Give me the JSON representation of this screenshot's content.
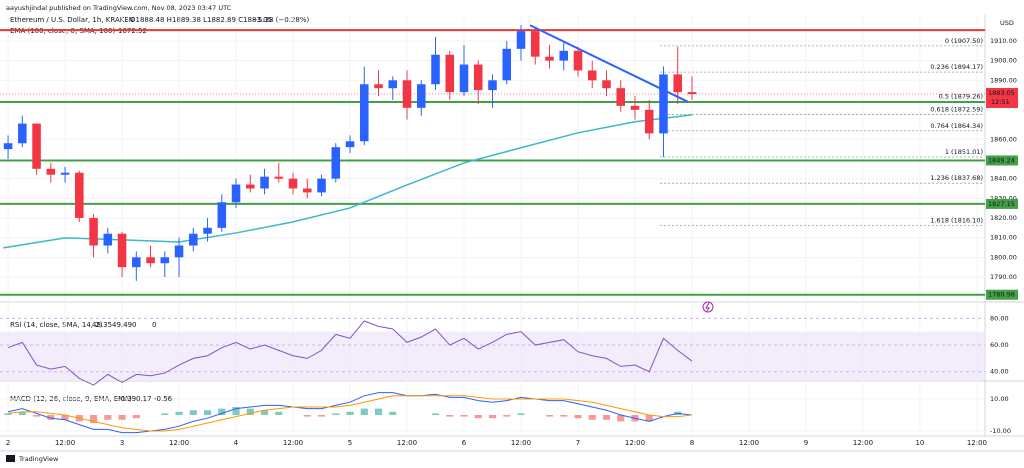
{
  "chart_data": {
    "type": "candlestick",
    "title": "aayushjindal published on TradingView.com, Nov 08, 2023 03:47 UTC",
    "symbol_legend": "Ethereum / U.S. Dollar, 1h, KRAKEN",
    "ohlc_legend": "O1888.48 H1889.38 L1882.89 C1883.05",
    "change_legend": "−5.38 (−0.28%)",
    "ema_legend": "EMA (100, close, 0, SMA, 100)",
    "ema_last": 1872.52,
    "currency": "USD",
    "footer": "TradingView",
    "up_color": "#2962ff",
    "down_color": "#f23645",
    "x": [
      0,
      3,
      6,
      9,
      12,
      15,
      18,
      21,
      24,
      27,
      30,
      33,
      36,
      39,
      42,
      45,
      48,
      51,
      54,
      57,
      60,
      63,
      66,
      69,
      72,
      75,
      78,
      81,
      84,
      87,
      90,
      93,
      96,
      99,
      102,
      105,
      108,
      111,
      114,
      117,
      120,
      123,
      126,
      129,
      132,
      135,
      138,
      141,
      144
    ],
    "open": [
      1855,
      1858,
      1868,
      1845,
      1842,
      1843,
      1820,
      1806,
      1812,
      1795,
      1800,
      1797,
      1800,
      1806,
      1812,
      1815,
      1828,
      1837,
      1835,
      1841,
      1840,
      1835,
      1833,
      1840,
      1856,
      1859,
      1888,
      1886,
      1890,
      1876,
      1888,
      1903,
      1884,
      1898,
      1885,
      1890,
      1906,
      1915,
      1902,
      1900,
      1905,
      1895,
      1890,
      1886,
      1877,
      1875,
      1863,
      1893,
      1884
    ],
    "high": [
      1862,
      1872,
      1868,
      1848,
      1846,
      1844,
      1822,
      1815,
      1813,
      1803,
      1806,
      1803,
      1810,
      1815,
      1820,
      1832,
      1840,
      1842,
      1845,
      1848,
      1843,
      1840,
      1842,
      1858,
      1862,
      1897,
      1895,
      1892,
      1895,
      1890,
      1912,
      1905,
      1908,
      1900,
      1893,
      1910,
      1918,
      1917,
      1908,
      1910,
      1907,
      1900,
      1895,
      1890,
      1882,
      1880,
      1897,
      1907,
      1892
    ],
    "low": [
      1850,
      1856,
      1842,
      1838,
      1838,
      1818,
      1800,
      1802,
      1790,
      1788,
      1795,
      1790,
      1790,
      1803,
      1808,
      1813,
      1825,
      1833,
      1832,
      1838,
      1832,
      1830,
      1831,
      1838,
      1853,
      1857,
      1882,
      1880,
      1870,
      1872,
      1885,
      1880,
      1882,
      1878,
      1876,
      1888,
      1900,
      1898,
      1896,
      1895,
      1892,
      1886,
      1882,
      1874,
      1870,
      1860,
      1851,
      1878,
      1880
    ],
    "close": [
      1858,
      1868,
      1845,
      1842,
      1843,
      1820,
      1806,
      1812,
      1795,
      1800,
      1797,
      1800,
      1806,
      1812,
      1815,
      1828,
      1837,
      1835,
      1841,
      1840,
      1835,
      1833,
      1840,
      1856,
      1859,
      1888,
      1886,
      1890,
      1876,
      1888,
      1903,
      1884,
      1898,
      1885,
      1890,
      1906,
      1915,
      1902,
      1900,
      1905,
      1895,
      1890,
      1886,
      1877,
      1875,
      1863,
      1893,
      1884,
      1883
    ],
    "xlim": [
      -1.7,
      205.7
    ],
    "xticks": [
      {
        "value": 0,
        "label": "2"
      },
      {
        "value": 12,
        "label": "12:00"
      },
      {
        "value": 24,
        "label": "3"
      },
      {
        "value": 36,
        "label": "12:00"
      },
      {
        "value": 48,
        "label": "4"
      },
      {
        "value": 60,
        "label": "12:00"
      },
      {
        "value": 72,
        "label": "5"
      },
      {
        "value": 84,
        "label": "12:00"
      },
      {
        "value": 96,
        "label": "6"
      },
      {
        "value": 108,
        "label": "12:00"
      },
      {
        "value": 120,
        "label": "7"
      },
      {
        "value": 132,
        "label": "12:00"
      },
      {
        "value": 144,
        "label": "8"
      },
      {
        "value": 156,
        "label": "12:00"
      },
      {
        "value": 168,
        "label": "9"
      },
      {
        "value": 180,
        "label": "12:00"
      },
      {
        "value": 192,
        "label": "10"
      },
      {
        "value": 204,
        "label": "12:00"
      }
    ],
    "ylim": [
      1778.3,
      1923.2
    ],
    "yticks": [
      {
        "value": 1910,
        "label": "1910.00"
      },
      {
        "value": 1900,
        "label": "1900.00"
      },
      {
        "value": 1890,
        "label": "1890.00"
      },
      {
        "value": 1860,
        "label": "1860.00"
      },
      {
        "value": 1840,
        "label": "1840.00"
      },
      {
        "value": 1830,
        "label": "1830.00"
      },
      {
        "value": 1820,
        "label": "1820.00"
      },
      {
        "value": 1810,
        "label": "1810.00"
      },
      {
        "value": 1800,
        "label": "1800.00"
      },
      {
        "value": 1790,
        "label": "1790.00"
      }
    ],
    "ema": {
      "color": "#3bb8c9",
      "x": [
        -1,
        12,
        24,
        36,
        48,
        60,
        72,
        84,
        96,
        108,
        120,
        132,
        144
      ],
      "values": [
        1804.8,
        1809.9,
        1808.9,
        1807.8,
        1812.4,
        1818,
        1825.1,
        1836.8,
        1848,
        1855.7,
        1863.3,
        1868.9,
        1872.4
      ]
    },
    "levels": {
      "color": "#43a047",
      "values": [
        1878.98,
        1849.24,
        1827.15,
        1780.98
      ]
    },
    "resistance": {
      "color": "#e53935",
      "value": 1915.5
    },
    "trendline": {
      "color": "#2962ff",
      "x": [
        109.9,
        143.2
      ],
      "values": [
        1918,
        1879
      ]
    },
    "last_price": 1883.05,
    "last_time": "12:51",
    "fib": {
      "color": "#9598a1",
      "x_start": 137.3,
      "levels": [
        {
          "value": 1907.5,
          "label": "0 (1907.50)"
        },
        {
          "value": 1894.17,
          "label": "0.236 (1894.17)"
        },
        {
          "value": 1879.26,
          "label": "0.5 (1879.26)"
        },
        {
          "value": 1872.59,
          "label": "0.618 (1872.59)"
        },
        {
          "value": 1864.34,
          "label": "0.764 (1864.34)"
        },
        {
          "value": 1851.01,
          "label": "1 (1851.01)"
        },
        {
          "value": 1837.68,
          "label": "1.236 (1837.68)"
        },
        {
          "value": 1816.1,
          "label": "1.618 (1816.10)"
        }
      ]
    },
    "rsi": {
      "legend": "RSI (14, close, SMA, 14, 2)",
      "legend_values": [
        48.35,
        49.49,
        0,
        0
      ],
      "color": "#7e57c2",
      "band_color": "#ede4fa",
      "values": [
        58,
        62,
        45,
        42,
        44,
        35,
        30,
        38,
        32,
        38,
        37,
        39,
        45,
        50,
        52,
        58,
        62,
        57,
        60,
        56,
        52,
        50,
        56,
        68,
        65,
        78,
        74,
        72,
        62,
        66,
        72,
        60,
        65,
        57,
        62,
        68,
        70,
        60,
        62,
        64,
        55,
        52,
        50,
        44,
        45,
        40,
        65,
        56,
        48
      ],
      "ylim": [
        33.8,
        91.5
      ],
      "band": [
        30,
        70
      ],
      "yticks": [
        {
          "value": 80,
          "label": "80.00"
        },
        {
          "value": 60,
          "label": "60.00"
        },
        {
          "value": 40,
          "label": "40.00"
        }
      ]
    },
    "macd": {
      "legend": "MACD (12, 26, close, 9, EMA, EMA)",
      "legend_values": [
        -0.39,
        0.17,
        -0.56
      ],
      "macd_color": "#2962ff",
      "signal_color": "#ff9800",
      "hist_up": "#26a69a",
      "hist_down": "#ef5350",
      "values": [
        2,
        4,
        1,
        -2,
        -3,
        -6,
        -9,
        -9,
        -11,
        -11,
        -10,
        -9,
        -7,
        -4,
        -2,
        1,
        4,
        5,
        6,
        6,
        5,
        4,
        4,
        6,
        8,
        12,
        14,
        14,
        12,
        12,
        13,
        11,
        11,
        9,
        8,
        9,
        11,
        10,
        9,
        9,
        7,
        5,
        3,
        0,
        -2,
        -4,
        -1,
        1,
        0
      ],
      "signal": [
        1,
        2,
        2,
        1,
        0,
        -2,
        -4,
        -6,
        -8,
        -9,
        -10,
        -10,
        -9,
        -7,
        -5,
        -3,
        -1,
        1,
        3,
        4,
        5,
        5,
        5,
        5,
        6,
        8,
        10,
        12,
        12,
        12,
        12,
        12,
        12,
        11,
        10,
        10,
        10,
        10,
        10,
        10,
        9,
        8,
        6,
        4,
        2,
        0,
        -1,
        -1,
        0
      ],
      "histogram": [
        1,
        2,
        -1,
        -3,
        -3,
        -4,
        -5,
        -3,
        -3,
        -2,
        0,
        1,
        2,
        3,
        3,
        4,
        5,
        4,
        3,
        2,
        0,
        -1,
        -1,
        1,
        2,
        4,
        4,
        2,
        0,
        0,
        1,
        -1,
        -1,
        -2,
        -2,
        -1,
        1,
        0,
        -1,
        -1,
        -2,
        -3,
        -3,
        -4,
        -4,
        -4,
        0,
        2,
        0
      ],
      "ylim": [
        -12.5,
        20
      ],
      "yticks": [
        {
          "value": 10,
          "label": "10.00"
        },
        {
          "value": -10,
          "label": "-10.00"
        }
      ]
    }
  }
}
